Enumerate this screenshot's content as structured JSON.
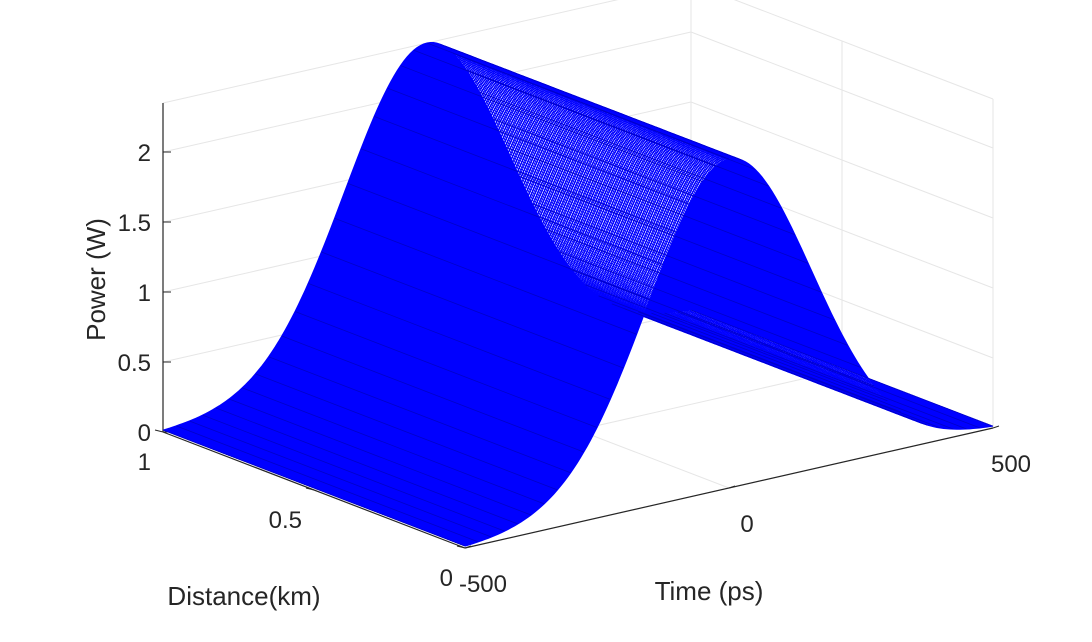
{
  "chart_data": {
    "type": "surface",
    "title": "",
    "xlabel": "Time (ps)",
    "ylabel": "Distance(km)",
    "zlabel": "Power (W)",
    "xlim": [
      -500,
      500
    ],
    "ylim": [
      0,
      1
    ],
    "zlim": [
      0,
      2.35
    ],
    "x_ticks": [
      -500,
      0,
      500
    ],
    "y_ticks": [
      0,
      0.5,
      1
    ],
    "z_ticks": [
      0,
      0.5,
      1,
      1.5,
      2
    ],
    "x_tick_labels": [
      "-500",
      "0",
      "500"
    ],
    "y_tick_labels": [
      "0",
      "0.5",
      "1"
    ],
    "z_tick_labels": [
      "0",
      "0.5",
      "1",
      "1.5",
      "2"
    ],
    "grid": true,
    "surface_color": "#0000ff",
    "pulse": {
      "shape": "gaussian",
      "peak_power": 2.35,
      "center_time": 0,
      "width_time": 220,
      "invariant_along_distance": true
    }
  }
}
